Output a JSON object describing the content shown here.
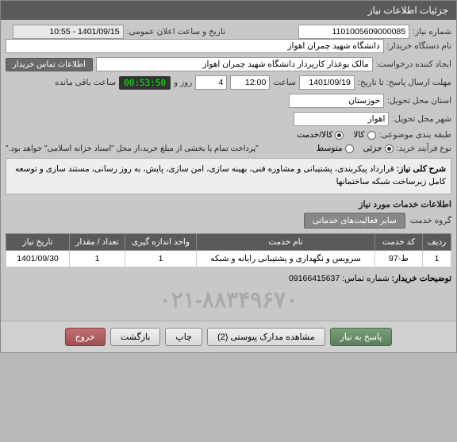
{
  "titlebar": "جزئیات اطلاعات نیاز",
  "fields": {
    "need_no_label": "شماره نیاز:",
    "need_no": "1101005609000085",
    "announce_label": "تاریخ و ساعت اعلان عمومی:",
    "announce_value": "1401/09/15 - 10:55",
    "buyer_org_label": "نام دستگاه خریدار:",
    "buyer_org": "دانشگاه شهید چمران اهواز",
    "requester_label": "ایجاد کننده درخواست:",
    "requester": "مالک بوعذار کارپردار دانشگاه شهید چمران اهواز",
    "contact_btn": "اطلاعات تماس خریدار",
    "deadline_label": "مهلت ارسال پاسخ: تا تاریخ:",
    "deadline_date": "1401/09/19",
    "time_label": "ساعت",
    "deadline_time": "12:00",
    "days_label": "روز و",
    "days_value": "4",
    "countdown": "00:53:50",
    "remaining_label": "ساعت باقی مانده",
    "province_label": "استان محل تحویل:",
    "province": "خوزستان",
    "city_label": "شهر محل تحویل:",
    "city": "اهواز",
    "subject_type_label": "طبقه بندی موضوعی:",
    "radio_goods": "کالا",
    "radio_service": "کالا/خدمت",
    "process_type_label": "نوع فرآیند خرید:",
    "radio_minor": "جزئی",
    "radio_medium": "متوسط",
    "process_note": "\"پرداخت تمام یا بخشی از مبلغ خرید،از محل \"اسناد خزانه اسلامی\" خواهد بود.\"",
    "desc_title": "شرح کلی نیاز:",
    "desc_text": "قرارداد پیکربندی، پشتیبانی و مشاوره فنی، بهینه سازی، امن سازی،  پایش، به روز رسانی، مستند سازی و توسعه کامل زیرساخت شبکه ساختمانها",
    "services_title": "اطلاعات خدمات مورد نیاز",
    "group_label": "گروه خدمت",
    "group_value": "سایر فعالیت‌های خدماتی",
    "buyer_notes_label": "توضیحات خریدار:",
    "contact_phone": "شماره تماس:  09166415637"
  },
  "table": {
    "headers": [
      "ردیف",
      "کد خدمت",
      "نام خدمت",
      "واحد اندازه گیری",
      "تعداد / مقدار",
      "تاریخ نیاز"
    ],
    "col_widths": [
      "36px",
      "60px",
      "auto",
      "90px",
      "70px",
      "80px"
    ],
    "rows": [
      [
        "1",
        "ط-97",
        "سرویس و نگهداری و پشتیبانی رایانه و شبکه",
        "1",
        "1",
        "1401/09/30"
      ]
    ]
  },
  "watermark": "۰۲۱-۸۸۳۴۹۶۷۰",
  "footer": {
    "respond": "پاسخ به نیاز",
    "attachments": "مشاهده مدارک پیوستی (2)",
    "print": "چاپ",
    "back": "بازگشت",
    "exit": "خروج"
  },
  "colors": {
    "header_bg": "#5a5a5a",
    "countdown_bg": "#333333",
    "countdown_fg": "#00ff00"
  }
}
